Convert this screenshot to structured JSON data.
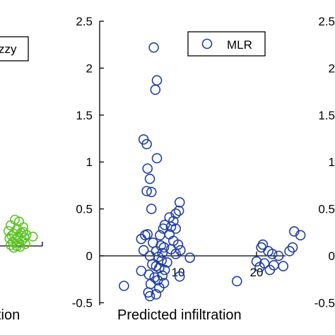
{
  "chart_data": [
    {
      "panel": "left",
      "type": "scatter",
      "legend": [
        "zzy"
      ],
      "xlabel": "tion",
      "color": "#59c21f",
      "points": [
        [
          10.6,
          0.28
        ],
        [
          11.0,
          0.26
        ],
        [
          10.2,
          0.22
        ],
        [
          11.4,
          0.2
        ],
        [
          10.8,
          0.18
        ],
        [
          10.0,
          0.16
        ],
        [
          11.2,
          0.14
        ],
        [
          10.5,
          0.13
        ],
        [
          11.7,
          0.12
        ],
        [
          10.3,
          0.11
        ],
        [
          10.9,
          0.1
        ],
        [
          11.5,
          0.09
        ],
        [
          10.1,
          0.08
        ],
        [
          10.7,
          0.07
        ],
        [
          11.3,
          0.06
        ],
        [
          10.4,
          0.04
        ],
        [
          11.0,
          0.03
        ],
        [
          11.6,
          0.02
        ],
        [
          10.2,
          0.01
        ],
        [
          10.8,
          0.0
        ],
        [
          11.1,
          -0.01
        ],
        [
          10.5,
          -0.02
        ],
        [
          11.4,
          0.15
        ],
        [
          12.3,
          0.1
        ]
      ]
    },
    {
      "panel": "middle",
      "type": "scatter",
      "legend": [
        "MLR"
      ],
      "xlabel": "Predicted infiltration",
      "yticks": [
        "-0.5",
        "0",
        "0.5",
        "1",
        "1.5",
        "2",
        "2.5"
      ],
      "xticks": [
        "10",
        "20"
      ],
      "ylim": [
        -0.5,
        2.5
      ],
      "color": "#1f3fa0",
      "points": [
        [
          6.9,
          2.22
        ],
        [
          7.3,
          1.87
        ],
        [
          7.1,
          1.77
        ],
        [
          5.6,
          1.24
        ],
        [
          6.0,
          1.19
        ],
        [
          7.3,
          1.04
        ],
        [
          6.1,
          0.93
        ],
        [
          6.4,
          0.82
        ],
        [
          6.0,
          0.69
        ],
        [
          6.6,
          0.68
        ],
        [
          6.6,
          0.5
        ],
        [
          10.2,
          0.57
        ],
        [
          10.1,
          0.48
        ],
        [
          9.7,
          0.45
        ],
        [
          8.9,
          0.41
        ],
        [
          9.4,
          0.37
        ],
        [
          8.3,
          0.33
        ],
        [
          9.1,
          0.31
        ],
        [
          8.1,
          0.29
        ],
        [
          9.7,
          0.29
        ],
        [
          6.1,
          0.23
        ],
        [
          5.8,
          0.22
        ],
        [
          7.7,
          0.22
        ],
        [
          8.9,
          0.23
        ],
        [
          5.3,
          0.18
        ],
        [
          6.8,
          0.14
        ],
        [
          7.8,
          0.11
        ],
        [
          8.2,
          0.09
        ],
        [
          9.4,
          0.16
        ],
        [
          10.0,
          0.12
        ],
        [
          5.6,
          0.06
        ],
        [
          7.2,
          0.05
        ],
        [
          8.0,
          0.03
        ],
        [
          9.1,
          0.07
        ],
        [
          10.3,
          0.06
        ],
        [
          6.4,
          0.0
        ],
        [
          7.5,
          -0.01
        ],
        [
          9.7,
          0.02
        ],
        [
          11.5,
          -0.02
        ],
        [
          7.9,
          -0.05
        ],
        [
          8.6,
          -0.07
        ],
        [
          6.7,
          -0.09
        ],
        [
          7.2,
          -0.11
        ],
        [
          7.6,
          -0.13
        ],
        [
          8.3,
          -0.15
        ],
        [
          5.3,
          -0.16
        ],
        [
          6.3,
          -0.2
        ],
        [
          7.0,
          -0.23
        ],
        [
          8.0,
          -0.21
        ],
        [
          10.2,
          -0.22
        ],
        [
          7.4,
          -0.26
        ],
        [
          8.2,
          -0.29
        ],
        [
          6.5,
          -0.3
        ],
        [
          7.6,
          -0.34
        ],
        [
          3.1,
          -0.32
        ],
        [
          6.2,
          -0.39
        ],
        [
          7.2,
          -0.41
        ],
        [
          6.4,
          -0.43
        ],
        [
          17.5,
          -0.27
        ],
        [
          20.6,
          0.09
        ],
        [
          21.5,
          0.05
        ],
        [
          22.8,
          0.0
        ],
        [
          20.0,
          -0.06
        ],
        [
          21.0,
          -0.08
        ],
        [
          22.2,
          -0.1
        ],
        [
          21.7,
          -0.15
        ],
        [
          20.4,
          -0.12
        ],
        [
          24.2,
          0.05
        ],
        [
          24.6,
          0.09
        ],
        [
          24.8,
          0.26
        ],
        [
          25.6,
          0.22
        ],
        [
          22.0,
          0.02
        ],
        [
          20.8,
          0.12
        ],
        [
          23.4,
          -0.11
        ]
      ]
    },
    {
      "panel": "right",
      "type": "scatter",
      "yticks": [
        "-0.5",
        "0",
        "0.5",
        "1",
        "1.5",
        "2",
        "2.5"
      ]
    }
  ]
}
